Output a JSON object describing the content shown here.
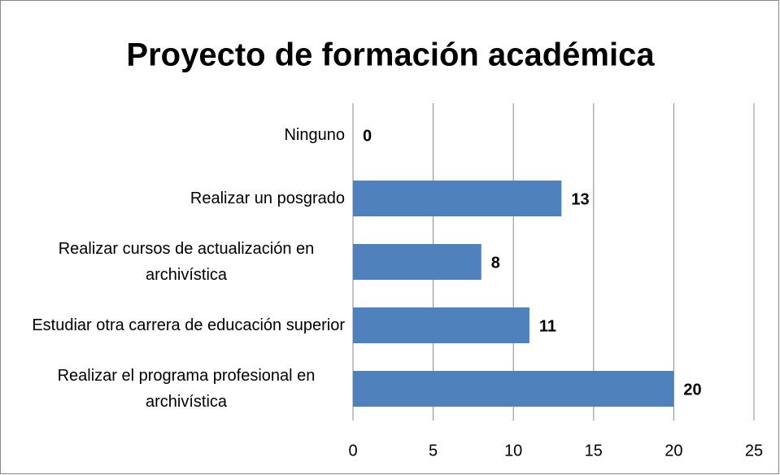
{
  "chart_data": {
    "type": "bar",
    "orientation": "horizontal",
    "title": "Proyecto de formación académica",
    "categories": [
      "Ninguno",
      "Realizar un posgrado",
      "Realizar cursos de actualización en archivística",
      "Estudiar otra carrera de educación superior",
      "Realizar el programa profesional en archivística"
    ],
    "values": [
      0,
      13,
      8,
      11,
      20
    ],
    "color": "#4f81bd",
    "xlim": [
      0,
      25
    ],
    "xticks": [
      0,
      5,
      10,
      15,
      20,
      25
    ],
    "grid": true
  }
}
